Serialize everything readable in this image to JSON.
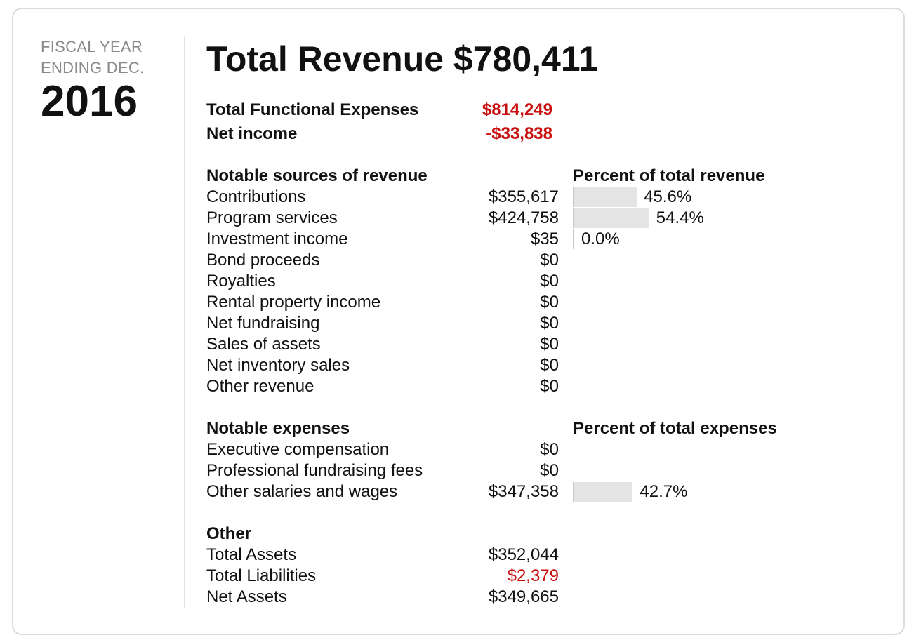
{
  "fiscal": {
    "line1": "FISCAL YEAR",
    "line2": "ENDING DEC.",
    "year": "2016"
  },
  "title": "Total Revenue $780,411",
  "summary": [
    {
      "label": "Total Functional Expenses",
      "value": "$814,249"
    },
    {
      "label": "Net income",
      "value": "-$33,838"
    }
  ],
  "revenue": {
    "heading": "Notable sources of revenue",
    "percent_heading": "Percent of total revenue",
    "items": [
      {
        "label": "Contributions",
        "amount": "$355,617",
        "percent": 45.6,
        "percent_label": "45.6%"
      },
      {
        "label": "Program services",
        "amount": "$424,758",
        "percent": 54.4,
        "percent_label": "54.4%"
      },
      {
        "label": "Investment income",
        "amount": "$35",
        "percent": 0.0,
        "percent_label": "0.0%"
      },
      {
        "label": "Bond proceeds",
        "amount": "$0"
      },
      {
        "label": "Royalties",
        "amount": "$0"
      },
      {
        "label": "Rental property income",
        "amount": "$0"
      },
      {
        "label": "Net fundraising",
        "amount": "$0"
      },
      {
        "label": "Sales of assets",
        "amount": "$0"
      },
      {
        "label": "Net inventory sales",
        "amount": "$0"
      },
      {
        "label": "Other revenue",
        "amount": "$0"
      }
    ]
  },
  "expenses": {
    "heading": "Notable expenses",
    "percent_heading": "Percent of total expenses",
    "items": [
      {
        "label": "Executive compensation",
        "amount": "$0"
      },
      {
        "label": "Professional fundraising fees",
        "amount": "$0"
      },
      {
        "label": "Other salaries and wages",
        "amount": "$347,358",
        "percent": 42.7,
        "percent_label": "42.7%"
      }
    ]
  },
  "other": {
    "heading": "Other",
    "items": [
      {
        "label": "Total Assets",
        "amount": "$352,044"
      },
      {
        "label": "Total Liabilities",
        "amount": "$2,379",
        "negative": true
      },
      {
        "label": "Net Assets",
        "amount": "$349,665"
      }
    ]
  },
  "colors": {
    "negative": "#c90e0e",
    "bar": "#e4e4e4",
    "muted": "#8a8a8a"
  }
}
